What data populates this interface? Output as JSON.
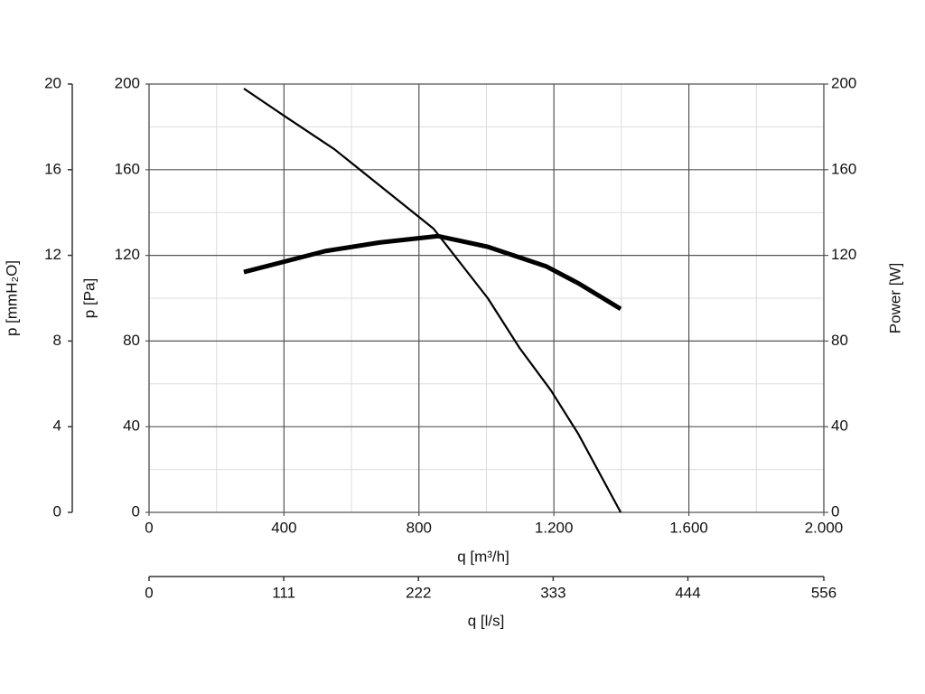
{
  "chart_data": {
    "type": "line",
    "x_label": "q [m³/h]",
    "x2_label": "q [l/s]",
    "y_label": "p [Pa]",
    "y3_label": "p [mmH₂O]",
    "y2_label": "Power [W]",
    "xlim": [
      0,
      2000
    ],
    "xticks": [
      0,
      400,
      800,
      {
        "value": 1200,
        "label": "1.200"
      },
      {
        "value": 1600,
        "label": "1.600"
      },
      {
        "value": 2000,
        "label": "2.000"
      }
    ],
    "x2lim": [
      0,
      556
    ],
    "x2ticks": [
      0,
      111,
      222,
      333,
      444,
      556
    ],
    "ylim": [
      0,
      200
    ],
    "yticks": [
      0,
      40,
      80,
      120,
      160,
      200
    ],
    "y3lim": [
      0,
      20
    ],
    "y3ticks": [
      0,
      4,
      8,
      12,
      16,
      20
    ],
    "y2lim": [
      0,
      200
    ],
    "y2ticks": [
      0,
      40,
      80,
      120,
      160,
      200
    ],
    "grid": true,
    "series": [
      {
        "color": "#000000",
        "x": [
          281,
          402,
          549,
          683,
          843,
          1004,
          1098,
          1191,
          1272,
          1398
        ],
        "values": [
          197.9,
          185,
          169.6,
          152.7,
          132.5,
          100,
          76.8,
          57,
          36.7,
          0
        ]
      },
      {
        "color": "#000000",
        "axis": "y2",
        "x": [
          281,
          522,
          683,
          857,
          1004,
          1178,
          1272,
          1398
        ],
        "values": [
          112.2,
          122,
          126,
          129,
          124,
          114.8,
          107,
          95
        ]
      }
    ]
  }
}
